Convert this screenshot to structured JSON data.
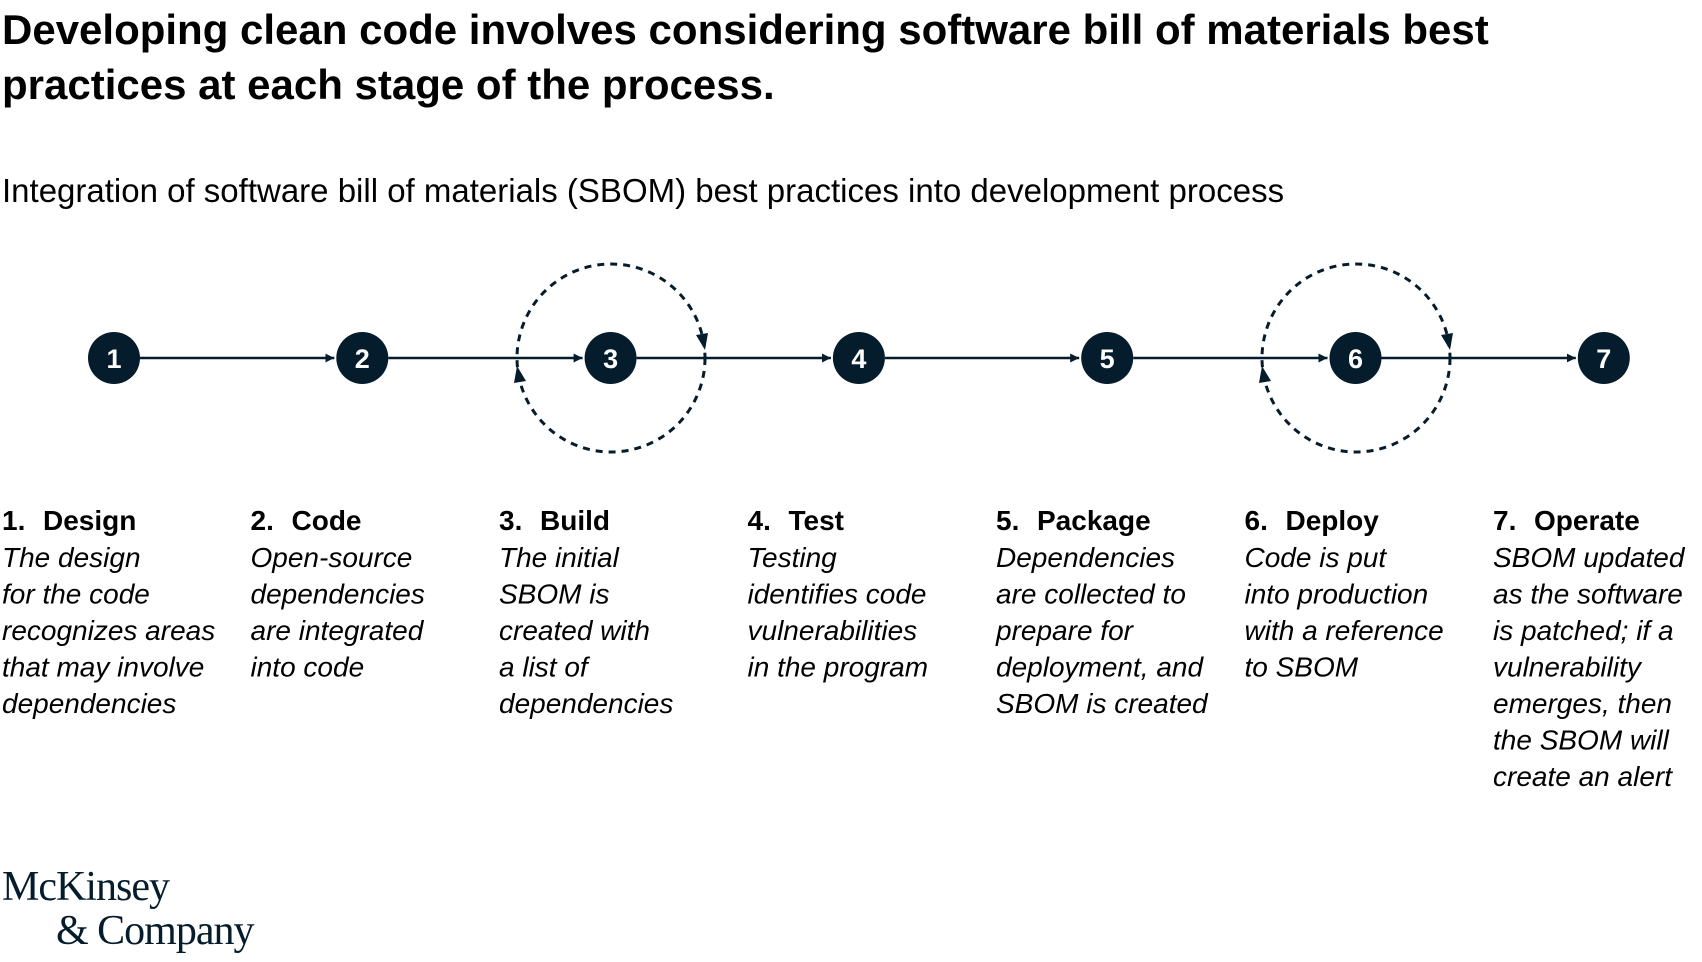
{
  "header": {
    "title_lines": [
      "Developing clean code involves considering software bill of materials best",
      "practices at each stage of the process."
    ],
    "subtitle": "Integration of software bill of materials (SBOM) best practices into development process"
  },
  "nodes": [
    "1",
    "2",
    "3",
    "4",
    "5",
    "6",
    "7"
  ],
  "steps": [
    {
      "number": "1.",
      "name": "Design",
      "description": [
        "The design",
        "for the code",
        "recognizes areas",
        "that may involve",
        "dependencies"
      ]
    },
    {
      "number": "2.",
      "name": "Code",
      "description": [
        "Open-source",
        "dependencies",
        "are integrated",
        "into code"
      ]
    },
    {
      "number": "3.",
      "name": "Build",
      "description": [
        "The initial",
        "SBOM is",
        "created with",
        "a list of",
        "dependencies"
      ]
    },
    {
      "number": "4.",
      "name": "Test",
      "description": [
        "Testing",
        "identifies code",
        "vulnerabilities",
        "in the program"
      ]
    },
    {
      "number": "5.",
      "name": "Package",
      "description": [
        "Dependencies",
        "are collected to",
        "prepare for",
        "deployment, and",
        "SBOM is created"
      ]
    },
    {
      "number": "6.",
      "name": "Deploy",
      "description": [
        "Code is put",
        "into production",
        "with a reference",
        "to SBOM"
      ]
    },
    {
      "number": "7.",
      "name": "Operate",
      "description": [
        "SBOM updated",
        "as the software",
        "is patched; if a",
        "vulnerability",
        "emerges, then",
        "the SBOM will",
        "create an alert"
      ]
    }
  ],
  "logo": [
    "McKinsey",
    "& Company"
  ]
}
